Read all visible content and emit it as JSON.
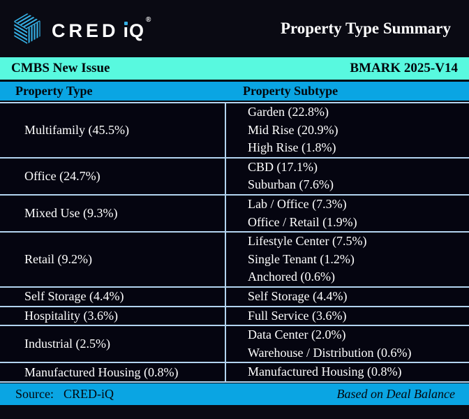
{
  "header": {
    "brand_prefix": "CRED",
    "brand_i": "ı",
    "brand_suffix": "Q",
    "registered": "®",
    "title": "Property Type Summary"
  },
  "banner": {
    "left": "CMBS New Issue",
    "right": "BMARK 2025-V14"
  },
  "table": {
    "columns": [
      "Property Type",
      "Property Subtype"
    ],
    "groups": [
      {
        "type": "Multifamily (45.5%)",
        "subtypes": [
          "Garden (22.8%)",
          "Mid Rise (20.9%)",
          "High Rise (1.8%)"
        ]
      },
      {
        "type": "Office (24.7%)",
        "subtypes": [
          "CBD (17.1%)",
          "Suburban (7.6%)"
        ]
      },
      {
        "type": "Mixed Use (9.3%)",
        "subtypes": [
          "Lab / Office (7.3%)",
          "Office / Retail (1.9%)"
        ]
      },
      {
        "type": "Retail (9.2%)",
        "subtypes": [
          "Lifestyle Center (7.5%)",
          "Single Tenant (1.2%)",
          "Anchored (0.6%)"
        ]
      },
      {
        "type": "Self Storage (4.4%)",
        "subtypes": [
          "Self Storage (4.4%)"
        ]
      },
      {
        "type": "Hospitality (3.6%)",
        "subtypes": [
          "Full Service (3.6%)"
        ]
      },
      {
        "type": "Industrial (2.5%)",
        "subtypes": [
          "Data Center (2.0%)",
          "Warehouse / Distribution (0.6%)"
        ]
      },
      {
        "type": "Manufactured Housing (0.8%)",
        "subtypes": [
          "Manufactured Housing (0.8%)"
        ]
      }
    ]
  },
  "footer": {
    "source_label": "Source:",
    "source_value": "CRED-iQ",
    "note": "Based on Deal Balance"
  },
  "colors": {
    "teal": "#58F9DF",
    "blue": "#0AA5E3",
    "background": "#0A0A13",
    "table_bg": "#050510",
    "divider": "#B3D4EF",
    "logo_blue": "#35AFE4"
  }
}
